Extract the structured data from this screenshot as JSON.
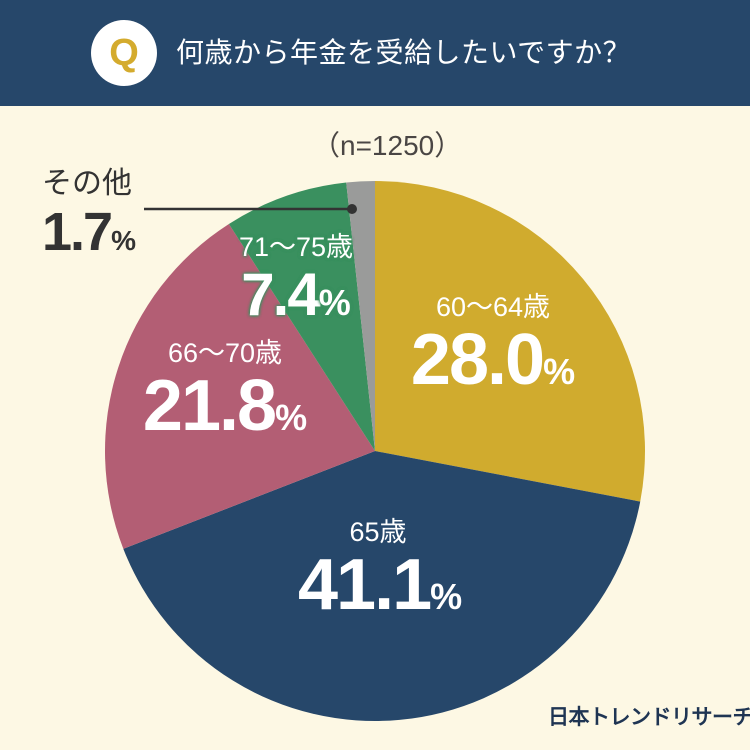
{
  "header": {
    "badge": "Q",
    "title": "何歳から年金を受給したいですか？"
  },
  "sample_size": "（n=1250）",
  "brand": "日本トレンドリサーチ",
  "colors": {
    "header_bg": "#26476a",
    "page_bg": "#fdf8e4",
    "slice_60_64": "#d0ab2e",
    "slice_65": "#26476a",
    "slice_66_70": "#b35e74",
    "slice_71_75": "#3a905f",
    "slice_other": "#9a9b9a"
  },
  "labels": {
    "s1": {
      "cat": "60〜64歳",
      "val": "28.0",
      "pct": "%"
    },
    "s2": {
      "cat": "65歳",
      "val": "41.1",
      "pct": "%"
    },
    "s3": {
      "cat": "66〜70歳",
      "val": "21.8",
      "pct": "%"
    },
    "s4": {
      "cat": "71〜75歳",
      "val": "7.4",
      "pct": "%"
    },
    "s5": {
      "cat": "その他",
      "val": "1.7",
      "pct": "%"
    }
  },
  "chart_data": {
    "type": "pie",
    "title": "何歳から年金を受給したいですか？",
    "subtitle": "（n=1250）",
    "categories": [
      "60〜64歳",
      "65歳",
      "66〜70歳",
      "71〜75歳",
      "その他"
    ],
    "values": [
      28.0,
      41.1,
      21.8,
      7.4,
      1.7
    ],
    "unit": "%",
    "start_angle": "12 o'clock, clockwise",
    "colors": [
      "#d0ab2e",
      "#26476a",
      "#b35e74",
      "#3a905f",
      "#9a9b9a"
    ]
  }
}
